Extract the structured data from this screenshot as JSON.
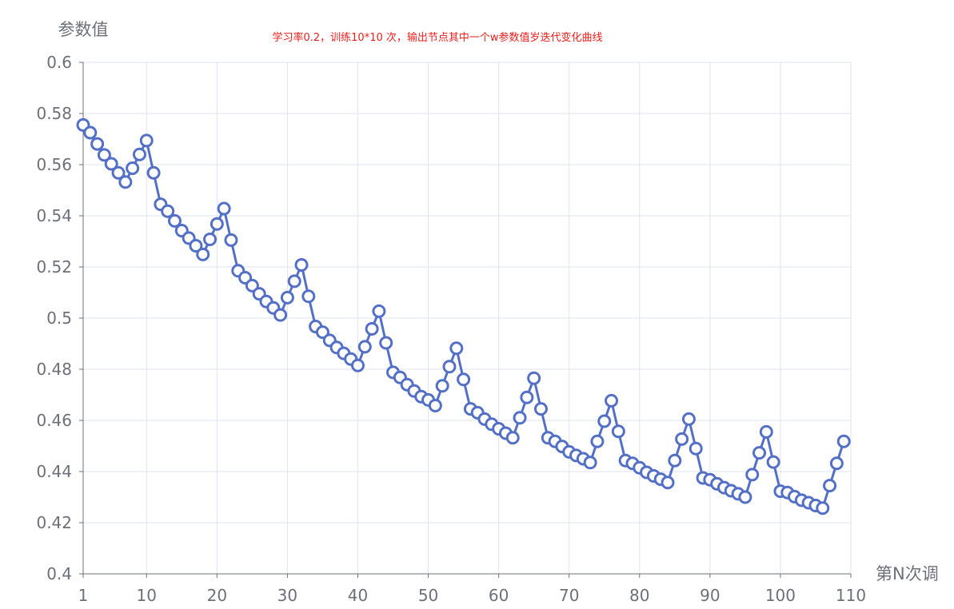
{
  "chart_data": {
    "type": "line",
    "title": "学习率0.2，训练10*10 次，输出节点其中一个w参数值岁迭代变化曲线",
    "xlabel": "第N次调",
    "ylabel": "参数值",
    "x_start": 1,
    "xlim": [
      1,
      110
    ],
    "ylim": [
      0.4,
      0.6
    ],
    "x_ticks": [
      "1",
      "10",
      "20",
      "30",
      "40",
      "50",
      "60",
      "70",
      "80",
      "90",
      "100",
      "110"
    ],
    "y_ticks": [
      "0.4",
      "0.42",
      "0.44",
      "0.46",
      "0.48",
      "0.5",
      "0.52",
      "0.54",
      "0.56",
      "0.58",
      "0.6"
    ],
    "grid": true,
    "colors": {
      "line": "#5470c6",
      "title": "#e8201e",
      "grid": "#dfe3ee",
      "axis": "#6e7079"
    },
    "series": [
      {
        "values": [
          0.5755,
          0.5725,
          0.5681,
          0.5638,
          0.5603,
          0.5568,
          0.5532,
          0.5586,
          0.564,
          0.5694,
          0.5568,
          0.5445,
          0.5418,
          0.538,
          0.5342,
          0.5313,
          0.5283,
          0.5249,
          0.5308,
          0.5368,
          0.5428,
          0.5305,
          0.5185,
          0.5158,
          0.5127,
          0.5095,
          0.5065,
          0.504,
          0.5012,
          0.508,
          0.5144,
          0.5208,
          0.5085,
          0.4967,
          0.4945,
          0.4913,
          0.4885,
          0.4862,
          0.484,
          0.4815,
          0.4888,
          0.4958,
          0.5027,
          0.4903,
          0.4788,
          0.4768,
          0.474,
          0.4715,
          0.4693,
          0.468,
          0.4658,
          0.4735,
          0.481,
          0.4882,
          0.476,
          0.4645,
          0.463,
          0.4605,
          0.4585,
          0.4567,
          0.455,
          0.4532,
          0.461,
          0.469,
          0.4765,
          0.4645,
          0.4532,
          0.4518,
          0.4498,
          0.4477,
          0.4463,
          0.445,
          0.4435,
          0.4518,
          0.4597,
          0.4677,
          0.4557,
          0.4443,
          0.4432,
          0.4415,
          0.4397,
          0.4383,
          0.437,
          0.4357,
          0.4443,
          0.4527,
          0.4605,
          0.449,
          0.4375,
          0.4368,
          0.4352,
          0.4337,
          0.4325,
          0.4313,
          0.43,
          0.4388,
          0.4473,
          0.4555,
          0.4437,
          0.4323,
          0.4318,
          0.4302,
          0.4288,
          0.4278,
          0.4267,
          0.4257,
          0.4345,
          0.4432,
          0.4518
        ]
      }
    ]
  }
}
